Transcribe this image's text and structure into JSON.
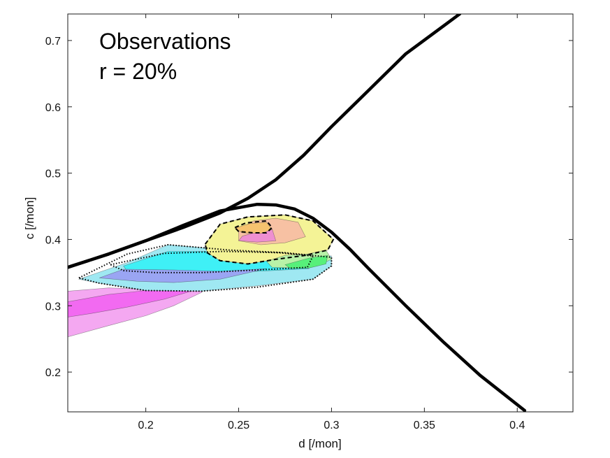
{
  "chart_data": {
    "type": "contour",
    "xlabel": "d [/mon]",
    "ylabel": "c [/mon]",
    "xlim": [
      0.158,
      0.43
    ],
    "ylim": [
      0.14,
      0.74
    ],
    "xticks": [
      0.2,
      0.25,
      0.3,
      0.35,
      0.4
    ],
    "yticks": [
      0.2,
      0.3,
      0.4,
      0.5,
      0.6,
      0.7
    ],
    "xtick_labels": [
      "0.2",
      "0.25",
      "0.3",
      "0.35",
      "0.4"
    ],
    "ytick_labels": [
      "0.2",
      "0.3",
      "0.4",
      "0.5",
      "0.6",
      "0.7"
    ],
    "annotations": [
      "Observations",
      "r = 20%"
    ],
    "curves": [
      {
        "style": "solid-thick",
        "color": "#000000",
        "points": [
          [
            0.158,
            0.358
          ],
          [
            0.18,
            0.378
          ],
          [
            0.2,
            0.398
          ],
          [
            0.22,
            0.418
          ],
          [
            0.24,
            0.44
          ],
          [
            0.255,
            0.462
          ],
          [
            0.27,
            0.49
          ],
          [
            0.285,
            0.527
          ],
          [
            0.3,
            0.57
          ],
          [
            0.32,
            0.625
          ],
          [
            0.34,
            0.68
          ],
          [
            0.369,
            0.74
          ]
        ]
      },
      {
        "style": "solid-thick",
        "color": "#000000",
        "points": [
          [
            0.158,
            0.358
          ],
          [
            0.18,
            0.378
          ],
          [
            0.2,
            0.398
          ],
          [
            0.22,
            0.421
          ],
          [
            0.24,
            0.443
          ],
          [
            0.26,
            0.453
          ],
          [
            0.27,
            0.452
          ],
          [
            0.28,
            0.446
          ],
          [
            0.29,
            0.432
          ],
          [
            0.3,
            0.411
          ],
          [
            0.31,
            0.385
          ],
          [
            0.32,
            0.356
          ],
          [
            0.34,
            0.3
          ],
          [
            0.36,
            0.246
          ],
          [
            0.38,
            0.195
          ],
          [
            0.404,
            0.142
          ]
        ]
      }
    ],
    "filled_regions": [
      {
        "color": "#f4a8f1",
        "points": [
          [
            0.158,
            0.322
          ],
          [
            0.18,
            0.327
          ],
          [
            0.2,
            0.325
          ],
          [
            0.22,
            0.325
          ],
          [
            0.235,
            0.337
          ],
          [
            0.23,
            0.32
          ],
          [
            0.215,
            0.3
          ],
          [
            0.2,
            0.285
          ],
          [
            0.18,
            0.27
          ],
          [
            0.158,
            0.253
          ]
        ]
      },
      {
        "color": "#f26af1",
        "points": [
          [
            0.158,
            0.306
          ],
          [
            0.18,
            0.317
          ],
          [
            0.2,
            0.323
          ],
          [
            0.22,
            0.327
          ],
          [
            0.235,
            0.337
          ],
          [
            0.228,
            0.325
          ],
          [
            0.21,
            0.31
          ],
          [
            0.19,
            0.298
          ],
          [
            0.17,
            0.288
          ],
          [
            0.158,
            0.283
          ]
        ]
      },
      {
        "color": "#9fe8f2",
        "points": [
          [
            0.19,
            0.365
          ],
          [
            0.212,
            0.392
          ],
          [
            0.245,
            0.384
          ],
          [
            0.275,
            0.378
          ],
          [
            0.3,
            0.375
          ],
          [
            0.3,
            0.36
          ],
          [
            0.29,
            0.34
          ],
          [
            0.26,
            0.33
          ],
          [
            0.23,
            0.322
          ],
          [
            0.2,
            0.323
          ],
          [
            0.175,
            0.334
          ],
          [
            0.164,
            0.34
          ]
        ]
      },
      {
        "color": "#3ff0f6",
        "points": [
          [
            0.188,
            0.36
          ],
          [
            0.212,
            0.382
          ],
          [
            0.242,
            0.382
          ],
          [
            0.265,
            0.372
          ],
          [
            0.288,
            0.356
          ],
          [
            0.26,
            0.352
          ],
          [
            0.23,
            0.348
          ],
          [
            0.205,
            0.35
          ],
          [
            0.19,
            0.352
          ]
        ]
      },
      {
        "color": "#9aa5f3",
        "points": [
          [
            0.188,
            0.355
          ],
          [
            0.215,
            0.354
          ],
          [
            0.24,
            0.352
          ],
          [
            0.265,
            0.356
          ],
          [
            0.24,
            0.34
          ],
          [
            0.215,
            0.335
          ],
          [
            0.195,
            0.337
          ],
          [
            0.175,
            0.342
          ]
        ]
      },
      {
        "color": "#f4f396",
        "points": [
          [
            0.232,
            0.393
          ],
          [
            0.24,
            0.423
          ],
          [
            0.255,
            0.434
          ],
          [
            0.275,
            0.437
          ],
          [
            0.29,
            0.428
          ],
          [
            0.301,
            0.4
          ],
          [
            0.298,
            0.384
          ],
          [
            0.286,
            0.376
          ],
          [
            0.27,
            0.37
          ],
          [
            0.255,
            0.363
          ],
          [
            0.24,
            0.368
          ],
          [
            0.233,
            0.38
          ]
        ]
      },
      {
        "color": "#f7c1a3",
        "points": [
          [
            0.25,
            0.415
          ],
          [
            0.258,
            0.428
          ],
          [
            0.27,
            0.432
          ],
          [
            0.282,
            0.426
          ],
          [
            0.286,
            0.404
          ],
          [
            0.275,
            0.395
          ],
          [
            0.262,
            0.392
          ],
          [
            0.25,
            0.398
          ]
        ]
      },
      {
        "color": "#ee8fd1",
        "points": [
          [
            0.252,
            0.405
          ],
          [
            0.262,
            0.413
          ],
          [
            0.268,
            0.416
          ],
          [
            0.27,
            0.398
          ],
          [
            0.26,
            0.396
          ],
          [
            0.25,
            0.398
          ]
        ]
      },
      {
        "color": "#b8f2a8",
        "points": [
          [
            0.265,
            0.367
          ],
          [
            0.275,
            0.376
          ],
          [
            0.287,
            0.378
          ],
          [
            0.297,
            0.384
          ],
          [
            0.3,
            0.37
          ],
          [
            0.292,
            0.36
          ],
          [
            0.28,
            0.357
          ],
          [
            0.268,
            0.358
          ]
        ]
      },
      {
        "color": "#57f07a",
        "points": [
          [
            0.275,
            0.362
          ],
          [
            0.288,
            0.372
          ],
          [
            0.298,
            0.376
          ],
          [
            0.297,
            0.363
          ],
          [
            0.288,
            0.357
          ],
          [
            0.278,
            0.356
          ]
        ]
      },
      {
        "color": "#f5c36f",
        "points": [
          [
            0.248,
            0.417
          ],
          [
            0.256,
            0.424
          ],
          [
            0.265,
            0.426
          ],
          [
            0.268,
            0.415
          ],
          [
            0.262,
            0.409
          ],
          [
            0.252,
            0.41
          ]
        ]
      }
    ],
    "contour_lines": [
      {
        "style": "dotted",
        "points": [
          [
            0.164,
            0.342
          ],
          [
            0.19,
            0.378
          ],
          [
            0.212,
            0.392
          ],
          [
            0.245,
            0.384
          ],
          [
            0.275,
            0.38
          ],
          [
            0.3,
            0.373
          ],
          [
            0.3,
            0.36
          ],
          [
            0.29,
            0.34
          ],
          [
            0.26,
            0.328
          ],
          [
            0.23,
            0.322
          ],
          [
            0.2,
            0.323
          ],
          [
            0.175,
            0.334
          ],
          [
            0.164,
            0.342
          ]
        ]
      },
      {
        "style": "dotted",
        "points": [
          [
            0.181,
            0.362
          ],
          [
            0.21,
            0.379
          ],
          [
            0.242,
            0.382
          ],
          [
            0.272,
            0.38
          ],
          [
            0.29,
            0.375
          ],
          [
            0.287,
            0.358
          ],
          [
            0.26,
            0.354
          ],
          [
            0.23,
            0.35
          ],
          [
            0.205,
            0.35
          ],
          [
            0.188,
            0.353
          ],
          [
            0.181,
            0.362
          ]
        ]
      },
      {
        "style": "dashed",
        "points": [
          [
            0.232,
            0.393
          ],
          [
            0.24,
            0.423
          ],
          [
            0.255,
            0.434
          ],
          [
            0.275,
            0.437
          ],
          [
            0.29,
            0.428
          ],
          [
            0.301,
            0.4
          ],
          [
            0.298,
            0.384
          ],
          [
            0.286,
            0.376
          ],
          [
            0.27,
            0.37
          ],
          [
            0.255,
            0.363
          ],
          [
            0.24,
            0.368
          ],
          [
            0.233,
            0.38
          ],
          [
            0.232,
            0.393
          ]
        ]
      },
      {
        "style": "dashed",
        "points": [
          [
            0.248,
            0.418
          ],
          [
            0.254,
            0.425
          ],
          [
            0.265,
            0.428
          ],
          [
            0.268,
            0.418
          ],
          [
            0.265,
            0.41
          ],
          [
            0.258,
            0.41
          ],
          [
            0.25,
            0.412
          ],
          [
            0.248,
            0.418
          ]
        ]
      }
    ]
  }
}
